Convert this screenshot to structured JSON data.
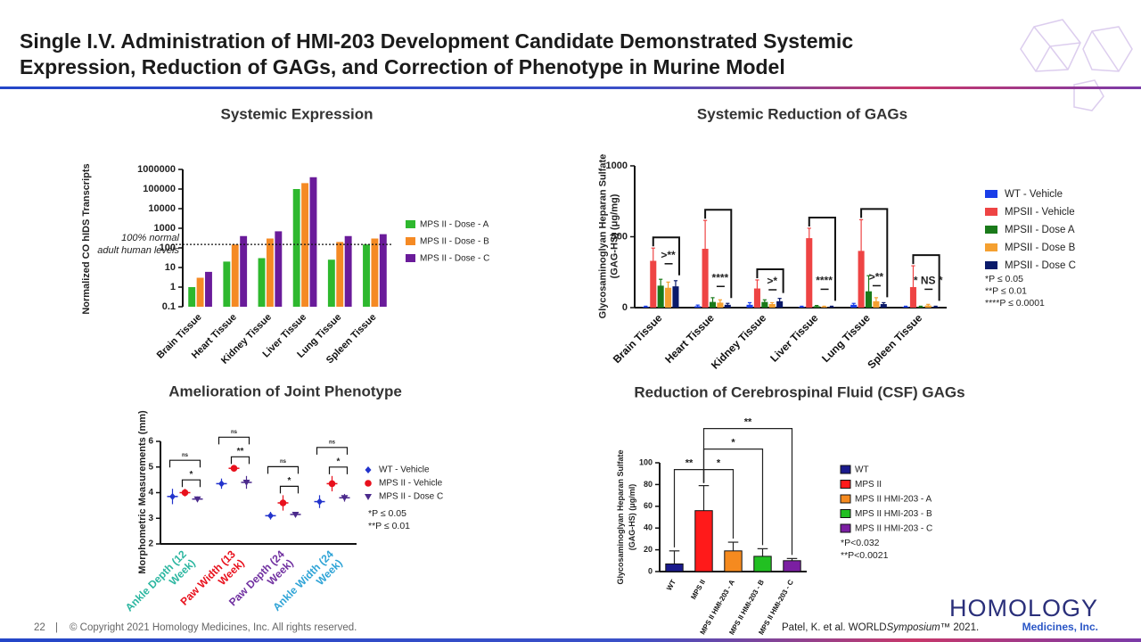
{
  "header": {
    "title": [
      "Single I.V. Administration of HMI-203 Development Candidate Demonstrated Systemic",
      "Expression, Reduction of GAGs, and Correction of Phenotype in Murine Model"
    ]
  },
  "chart_data": [
    {
      "type": "bar",
      "title": "Systemic Expression",
      "y_label": [
        "Normalized CO hIDS Transcripts"
      ],
      "categories": [
        "Brain Tissue",
        "Heart Tissue",
        "Kidney Tissue",
        "Liver Tissue",
        "Lung Tissue",
        "Spleen Tissue"
      ],
      "series": [
        {
          "name": "MPS II - Dose - A",
          "color": "#2eb82e",
          "values": [
            1,
            20,
            30,
            100000,
            25,
            150
          ]
        },
        {
          "name": "MPS II - Dose - B",
          "color": "#f58a24",
          "values": [
            3,
            150,
            300,
            200000,
            200,
            300
          ]
        },
        {
          "name": "MPS II - Dose - C",
          "color": "#6a1b9a",
          "values": [
            6,
            400,
            700,
            400000,
            400,
            500
          ]
        }
      ],
      "ylim": [
        0.1,
        1000000
      ],
      "yticks": [
        0.1,
        1,
        10,
        100,
        1000,
        10000,
        100000,
        1000000
      ],
      "log_scale": true,
      "reference_line": {
        "value": 150,
        "label": [
          "100% normal",
          "adult human levels"
        ]
      },
      "legend": "right"
    },
    {
      "type": "bar",
      "title": "Systemic Reduction of GAGs",
      "y_label": [
        "Glycosaminoglyan Heparan Sulfate",
        "(GAG-HS) (μg/mg)"
      ],
      "categories": [
        "Brain Tissue",
        "Heart Tissue",
        "Kidney Tissue",
        "Liver Tissue",
        "Lung Tissue",
        "Spleen Tissue"
      ],
      "series": [
        {
          "name": "WT - Vehicle",
          "color": "#1a3ee8",
          "values": [
            5,
            10,
            20,
            5,
            20,
            5
          ],
          "errors": [
            5,
            8,
            15,
            5,
            10,
            5
          ]
        },
        {
          "name": "MPSII - Vehicle",
          "color": "#ee4444",
          "values": [
            330,
            415,
            135,
            490,
            400,
            145
          ],
          "errors": [
            90,
            200,
            60,
            70,
            220,
            150
          ]
        },
        {
          "name": "MPSII - Dose A",
          "color": "#1a7a1a",
          "values": [
            155,
            40,
            40,
            10,
            115,
            5
          ],
          "errors": [
            45,
            30,
            15,
            5,
            110,
            5
          ]
        },
        {
          "name": "MPSII - Dose B",
          "color": "#f5a030",
          "values": [
            140,
            35,
            25,
            5,
            45,
            15
          ],
          "errors": [
            40,
            20,
            10,
            5,
            25,
            8
          ]
        },
        {
          "name": "MPSII - Dose C",
          "color": "#0a1a6a",
          "values": [
            150,
            20,
            45,
            5,
            25,
            5
          ],
          "errors": [
            40,
            10,
            20,
            5,
            10,
            5
          ]
        }
      ],
      "annotations": [
        ">**",
        "****",
        ">*",
        "****",
        ">**",
        "* NS *"
      ],
      "ylim": [
        0,
        1000
      ],
      "yticks": [
        0,
        500,
        1000
      ],
      "footnotes": [
        "*P ≤ 0.05",
        "**P ≤ 0.01",
        "****P ≤ 0.0001"
      ],
      "legend": "right"
    },
    {
      "type": "dot",
      "title": "Amelioration of Joint Phenotype",
      "y_label": [
        "Morphometric Measurements (mm)"
      ],
      "categories": [
        [
          "Ankle Depth (12",
          "Week)"
        ],
        [
          "Paw Width (13",
          "Week)"
        ],
        [
          "Paw Depth (24",
          "Week)"
        ],
        [
          "Ankle Width (24",
          "Week)"
        ]
      ],
      "category_colors": [
        "#2bb6a0",
        "#e8101c",
        "#7030a0",
        "#2ea3d6"
      ],
      "series": [
        {
          "name": "WT - Vehicle",
          "color": "#2233cc",
          "marker": "diamond",
          "values": [
            3.85,
            4.35,
            3.1,
            3.65
          ],
          "errors": [
            0.3,
            0.2,
            0.15,
            0.25
          ]
        },
        {
          "name": "MPS II - Vehicle",
          "color": "#e8101c",
          "marker": "circle",
          "values": [
            4.0,
            4.95,
            3.6,
            4.35
          ],
          "errors": [
            0.15,
            0.1,
            0.3,
            0.3
          ]
        },
        {
          "name": "MPS II - Dose C",
          "color": "#4b2a8c",
          "marker": "triangle",
          "values": [
            3.75,
            4.4,
            3.15,
            3.8
          ],
          "errors": [
            0.1,
            0.25,
            0.1,
            0.15
          ]
        }
      ],
      "annotations": [
        [
          "ns",
          "*"
        ],
        [
          "ns",
          "**"
        ],
        [
          "ns",
          "*"
        ],
        [
          "ns",
          "*"
        ]
      ],
      "ylim": [
        2,
        6
      ],
      "yticks": [
        2,
        3,
        4,
        5,
        6
      ],
      "footnotes": [
        "*P ≤ 0.05",
        "**P ≤ 0.01"
      ],
      "legend": "right"
    },
    {
      "type": "bar",
      "title": "Reduction of Cerebrospinal Fluid (CSF) GAGs",
      "y_label": [
        "Glycosaminoglyan Heparan Sulfate",
        "(GAG-HS) (μg/ml)"
      ],
      "categories": [
        "WT",
        "MPS II",
        "MPS II HMI-203 - A",
        "MPS II HMI-203 - B",
        "MPS II HMI-203 - C"
      ],
      "values": [
        7,
        56,
        19,
        14,
        10
      ],
      "errors": [
        12,
        23,
        8,
        7,
        2
      ],
      "colors": [
        "#1a1a8c",
        "#ff1a1a",
        "#f58a1f",
        "#22c022",
        "#7b1fa2"
      ],
      "annotations": [
        "**",
        null,
        "*",
        "*",
        "**"
      ],
      "ylim": [
        0,
        100
      ],
      "yticks": [
        0,
        20,
        40,
        60,
        80,
        100
      ],
      "footnotes": [
        "*P<0.032",
        "**P<0.0021"
      ],
      "legend": "right"
    }
  ],
  "footer": {
    "page": "22",
    "separator": "|",
    "copyright": "© Copyright 2021 Homology Medicines, Inc. All rights reserved.",
    "citation": [
      "Patel, K. et al. WORLD",
      "Symposium",
      "™ 2021."
    ],
    "logo": {
      "name": "HOMOLOGY",
      "subtitle": "Medicines, Inc."
    }
  }
}
